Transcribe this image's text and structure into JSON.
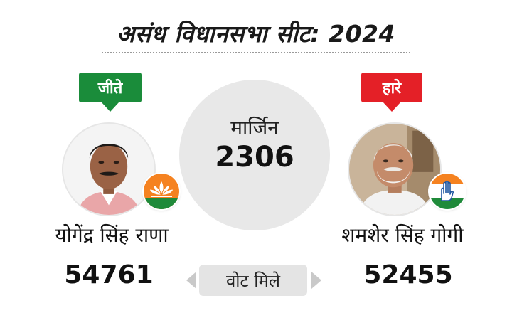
{
  "header": {
    "title": "असंध विधानसभा सीट: 2024"
  },
  "winner": {
    "status_label": "जीते",
    "status_color": "#1a8c3a",
    "name": "योगेंद्र सिंह राणा",
    "party_icon": "lotus-party-symbol",
    "votes": "54761"
  },
  "loser": {
    "status_label": "हारे",
    "status_color": "#e42027",
    "name": "शमशेर सिंह गोगी",
    "party_icon": "hand-party-symbol",
    "votes": "52455"
  },
  "margin": {
    "label": "मार्जिन",
    "value": "2306"
  },
  "votes_label": "वोट मिले"
}
